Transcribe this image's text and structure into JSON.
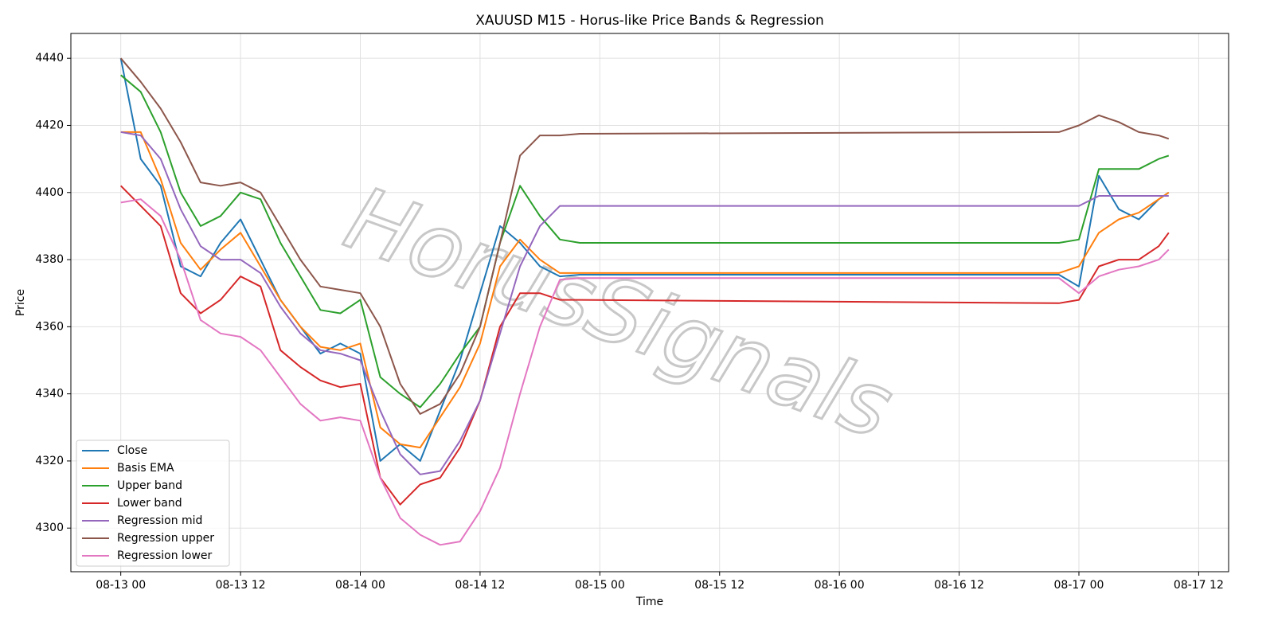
{
  "chart_data": {
    "type": "line",
    "title": "XAUUSD M15 - Horus-like Price Bands & Regression",
    "x_label": "Time",
    "y_label": "Price",
    "watermark": "HorusSignals",
    "x": [
      "08-13 00",
      "08-13 02",
      "08-13 04",
      "08-13 06",
      "08-13 08",
      "08-13 10",
      "08-13 12",
      "08-13 14",
      "08-13 16",
      "08-13 18",
      "08-13 20",
      "08-13 22",
      "08-14 00",
      "08-14 02",
      "08-14 04",
      "08-14 06",
      "08-14 08",
      "08-14 10",
      "08-14 12",
      "08-14 14",
      "08-14 16",
      "08-14 18",
      "08-14 20",
      "08-14 22",
      "08-16 22",
      "08-17 00",
      "08-17 02",
      "08-17 04",
      "08-17 06",
      "08-17 08",
      "08-17 09"
    ],
    "series": [
      {
        "name": "Close",
        "color": "#1f77b4",
        "values": [
          4440,
          4410,
          4402,
          4378,
          4375,
          4385,
          4392,
          4380,
          4368,
          4360,
          4352,
          4355,
          4352,
          4320,
          4325,
          4320,
          4335,
          4350,
          4370,
          4390,
          4385,
          4378,
          4375,
          4375.5,
          4375.5,
          4372,
          4405,
          4395,
          4392,
          4398,
          4400
        ]
      },
      {
        "name": "Basis EMA",
        "color": "#ff7f0e",
        "values": [
          4418,
          4418,
          4404,
          4385,
          4377,
          4383,
          4388,
          4378,
          4368,
          4360,
          4354,
          4353,
          4355,
          4330,
          4325,
          4324,
          4333,
          4342,
          4355,
          4378,
          4386,
          4380,
          4376,
          4376,
          4376,
          4378,
          4388,
          4392,
          4394,
          4398,
          4400
        ]
      },
      {
        "name": "Upper band",
        "color": "#2ca02c",
        "values": [
          4435,
          4430,
          4418,
          4400,
          4390,
          4393,
          4400,
          4398,
          4385,
          4375,
          4365,
          4364,
          4368,
          4345,
          4340,
          4336,
          4343,
          4352,
          4360,
          4385,
          4402,
          4393,
          4386,
          4385,
          4385,
          4386,
          4407,
          4407,
          4407,
          4410,
          4411
        ]
      },
      {
        "name": "Lower band",
        "color": "#d62728",
        "values": [
          4402,
          4396,
          4390,
          4370,
          4364,
          4368,
          4375,
          4372,
          4353,
          4348,
          4344,
          4342,
          4343,
          4315,
          4307,
          4313,
          4315,
          4324,
          4338,
          4360,
          4370,
          4370,
          4368,
          4368,
          4367,
          4368,
          4378,
          4380,
          4380,
          4384,
          4388
        ]
      },
      {
        "name": "Regression mid",
        "color": "#9467bd",
        "values": [
          4418,
          4417,
          4410,
          4395,
          4384,
          4380,
          4380,
          4376,
          4366,
          4358,
          4353,
          4352,
          4350,
          4335,
          4322,
          4316,
          4317,
          4326,
          4338,
          4358,
          4378,
          4390,
          4396,
          4396,
          4396,
          4396,
          4399,
          4399,
          4399,
          4399,
          4399
        ]
      },
      {
        "name": "Regression upper",
        "color": "#8c564b",
        "values": [
          4440,
          4433,
          4425,
          4415,
          4403,
          4402,
          4403,
          4400,
          4390,
          4380,
          4372,
          4371,
          4370,
          4360,
          4343,
          4334,
          4337,
          4346,
          4360,
          4385,
          4411,
          4417,
          4417,
          4417.5,
          4418,
          4420,
          4423,
          4421,
          4418,
          4417,
          4416
        ]
      },
      {
        "name": "Regression lower",
        "color": "#e377c2",
        "values": [
          4397,
          4398,
          4393,
          4380,
          4362,
          4358,
          4357,
          4353,
          4345,
          4337,
          4332,
          4333,
          4332,
          4315,
          4303,
          4298,
          4295,
          4296,
          4305,
          4318,
          4340,
          4360,
          4374,
          4374.5,
          4374.5,
          4370,
          4375,
          4377,
          4378,
          4380,
          4383
        ]
      }
    ],
    "xlim": [
      "08-12 19",
      "08-17 15"
    ],
    "xticks": [
      "08-13 00",
      "08-13 12",
      "08-14 00",
      "08-14 12",
      "08-15 00",
      "08-15 12",
      "08-16 00",
      "08-16 12",
      "08-17 00",
      "08-17 12"
    ],
    "ylim": [
      4287,
      4447.4
    ],
    "yticks": [
      4300,
      4320,
      4340,
      4360,
      4380,
      4400,
      4420,
      4440
    ],
    "grid": true,
    "legend": "lower left"
  }
}
